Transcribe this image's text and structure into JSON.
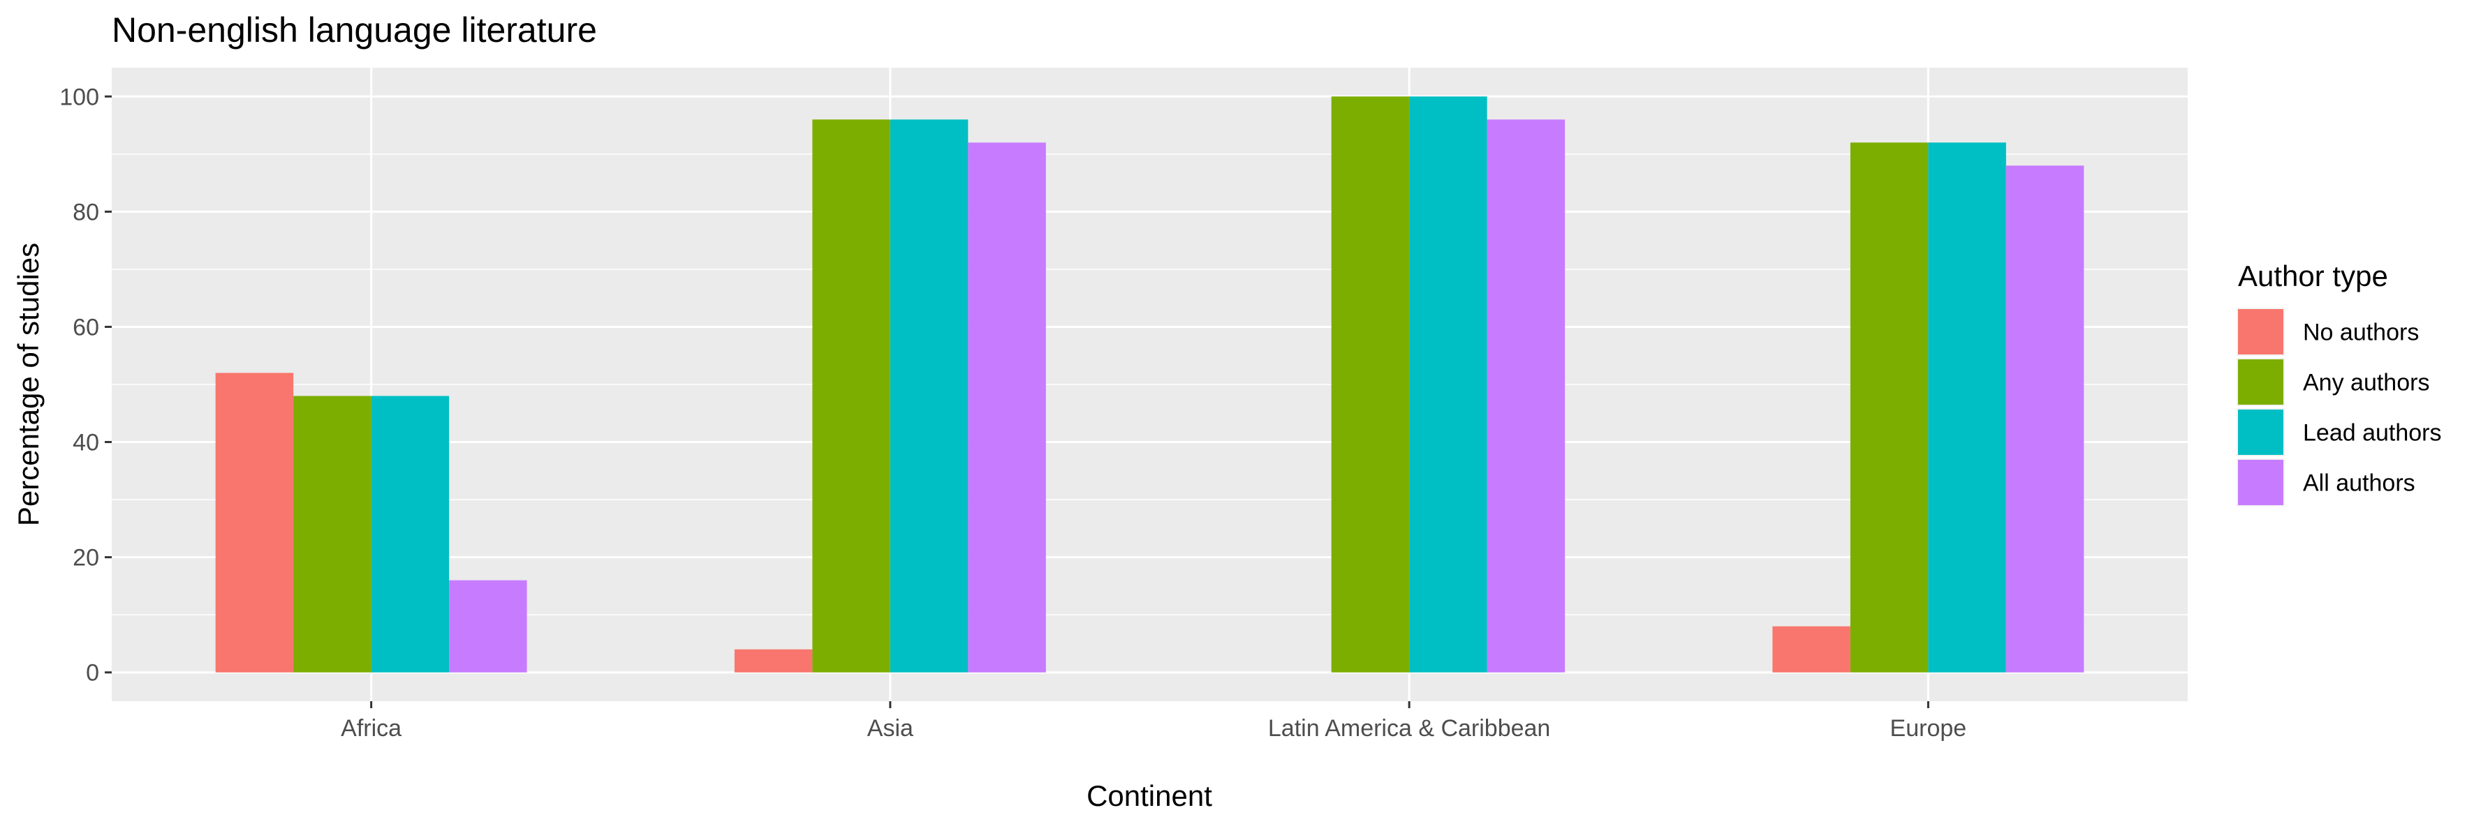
{
  "chart_data": {
    "type": "bar",
    "title": "Non-english language literature",
    "xlabel": "Continent",
    "ylabel": "Percentage of studies",
    "categories": [
      "Africa",
      "Asia",
      "Latin America & Caribbean",
      "Europe"
    ],
    "series": [
      {
        "name": "No authors",
        "color": "#F8766D",
        "values": [
          52,
          4,
          0,
          8
        ]
      },
      {
        "name": "Any authors",
        "color": "#7CAE00",
        "values": [
          48,
          96,
          100,
          92
        ]
      },
      {
        "name": "Lead authors",
        "color": "#00BFC4",
        "values": [
          48,
          96,
          100,
          92
        ]
      },
      {
        "name": "All authors",
        "color": "#C77CFF",
        "values": [
          16,
          92,
          96,
          88
        ]
      }
    ],
    "ylim": [
      -5,
      105
    ],
    "yticks": [
      0,
      20,
      40,
      60,
      80,
      100
    ],
    "legend": {
      "title": "Author type",
      "position": "right"
    },
    "grid": true,
    "panel_color": "#EBEBEB",
    "grid_color": "#FFFFFF"
  }
}
